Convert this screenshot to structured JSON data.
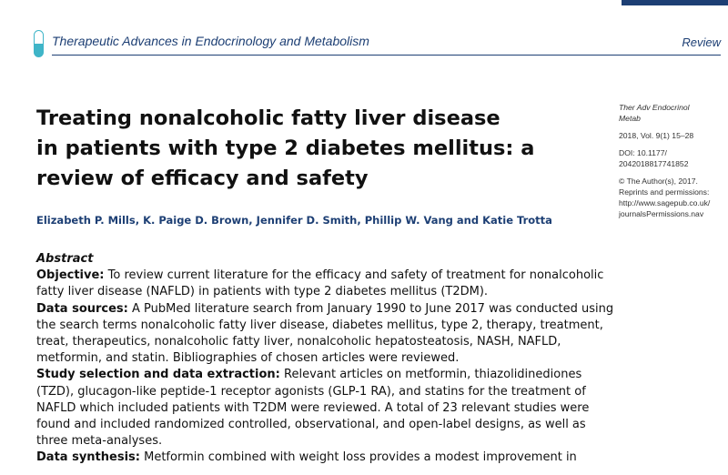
{
  "header": {
    "journal_name": "Therapeutic Advances in Endocrinology and Metabolism",
    "article_type": "Review",
    "logo": "journal-capsule-logo",
    "accent_color": "#1d3f74",
    "logo_color": "#3fb5c8"
  },
  "title": {
    "lines": [
      "Treating nonalcoholic fatty liver disease",
      "in patients with type 2 diabetes mellitus: a",
      "review of efficacy and safety"
    ]
  },
  "authors": "Elizabeth P. Mills, K. Paige D. Brown, Jennifer D. Smith, Phillip W. Vang and Katie Trotta",
  "sidebar": {
    "journal_abbrev_1": "Ther Adv Endocrinol",
    "journal_abbrev_2": "Metab",
    "citation": "2018, Vol. 9(1) 15–28",
    "doi_1": "DOI: 10.1177/",
    "doi_2": "2042018817741852",
    "copyright": "© The Author(s), 2017.",
    "reprints": "Reprints and permissions:",
    "url_1": "http://www.sagepub.co.uk/",
    "url_2": "journalsPermissions.nav"
  },
  "abstract": {
    "heading": "Abstract",
    "sections": [
      {
        "label": "Objective:",
        "text": "To review current literature for the efficacy and safety of treatment for nonalcoholic fatty liver disease (NAFLD) in patients with type 2 diabetes mellitus (T2DM)."
      },
      {
        "label": "Data sources:",
        "text": "A PubMed literature search from January 1990 to June 2017 was conducted using the search terms nonalcoholic fatty liver disease, diabetes mellitus, type 2, therapy, treatment, treat, therapeutics, nonalcoholic fatty liver, nonalcoholic hepatosteatosis, NASH, NAFLD, metformin, and statin. Bibliographies of chosen articles were reviewed."
      },
      {
        "label": "Study selection and data extraction:",
        "text": "Relevant articles on metformin, thiazolidinediones (TZD), glucagon-like peptide-1 receptor agonists (GLP-1 RA), and statins for the treatment of NAFLD which included patients with T2DM were reviewed. A total of 23 relevant studies were found and included randomized controlled, observational, and open-label designs, as well as three meta-analyses."
      },
      {
        "label": "Data synthesis:",
        "text": "Metformin combined with weight loss provides a modest improvement in"
      }
    ]
  }
}
